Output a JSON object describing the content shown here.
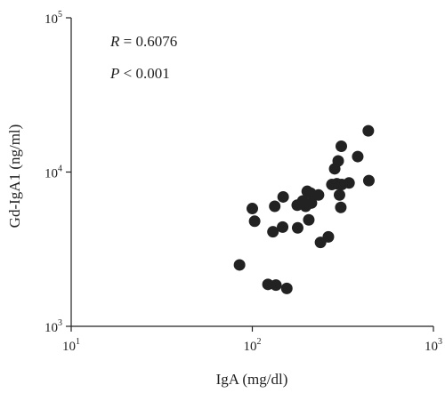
{
  "chart_data": {
    "type": "scatter",
    "title": "",
    "xlabel": "IgA (mg/dl)",
    "ylabel": "Gd-IgA1 (ng/ml)",
    "x_scale": "log",
    "y_scale": "log",
    "xlim": [
      10,
      1000
    ],
    "ylim": [
      1000,
      100000
    ],
    "x_ticks": [
      {
        "value": 10,
        "base": "10",
        "exp": "1"
      },
      {
        "value": 100,
        "base": "10",
        "exp": "2"
      },
      {
        "value": 1000,
        "base": "10",
        "exp": "3"
      }
    ],
    "y_ticks": [
      {
        "value": 1000,
        "base": "10",
        "exp": "3"
      },
      {
        "value": 10000,
        "base": "10",
        "exp": "4"
      },
      {
        "value": 100000,
        "base": "10",
        "exp": "5"
      }
    ],
    "grid": false,
    "legend": "none",
    "marker_color": "#222222",
    "annotations": {
      "r_label": "R",
      "r_value": " = 0.6076",
      "p_label": "P",
      "p_value": " < 0.001"
    },
    "points": [
      {
        "x": 85,
        "y": 2500
      },
      {
        "x": 100,
        "y": 5800
      },
      {
        "x": 103,
        "y": 4800
      },
      {
        "x": 122,
        "y": 1870
      },
      {
        "x": 130,
        "y": 4100
      },
      {
        "x": 133,
        "y": 6000
      },
      {
        "x": 135,
        "y": 1850
      },
      {
        "x": 147,
        "y": 4400
      },
      {
        "x": 148,
        "y": 6900
      },
      {
        "x": 155,
        "y": 1760
      },
      {
        "x": 177,
        "y": 6100
      },
      {
        "x": 178,
        "y": 4350
      },
      {
        "x": 190,
        "y": 6500
      },
      {
        "x": 197,
        "y": 6000
      },
      {
        "x": 201,
        "y": 7500
      },
      {
        "x": 205,
        "y": 4900
      },
      {
        "x": 210,
        "y": 7300
      },
      {
        "x": 212,
        "y": 6300
      },
      {
        "x": 232,
        "y": 7100
      },
      {
        "x": 238,
        "y": 3500
      },
      {
        "x": 263,
        "y": 3800
      },
      {
        "x": 275,
        "y": 8300
      },
      {
        "x": 285,
        "y": 10500
      },
      {
        "x": 293,
        "y": 8400
      },
      {
        "x": 298,
        "y": 11800
      },
      {
        "x": 303,
        "y": 7100
      },
      {
        "x": 308,
        "y": 5900
      },
      {
        "x": 312,
        "y": 8300
      },
      {
        "x": 310,
        "y": 14700
      },
      {
        "x": 342,
        "y": 8500
      },
      {
        "x": 382,
        "y": 12600
      },
      {
        "x": 437,
        "y": 18500
      },
      {
        "x": 440,
        "y": 8800
      }
    ]
  }
}
